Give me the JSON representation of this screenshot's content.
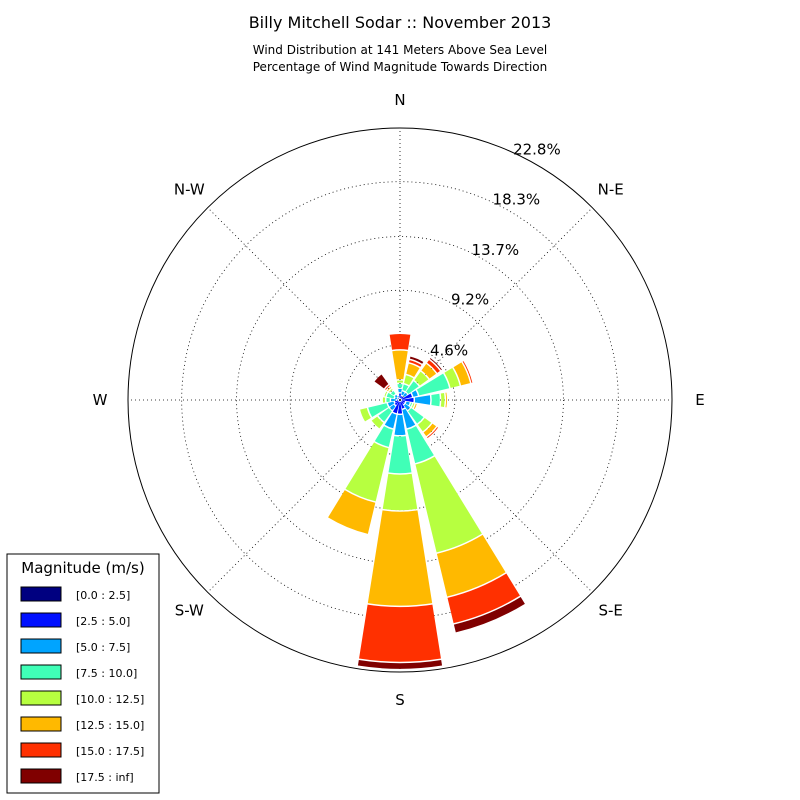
{
  "chart_data": {
    "type": "windrose",
    "title": "Billy Mitchell Sodar :: November 2013",
    "subtitle_lines": [
      "Wind Distribution at 141 Meters Above Sea Level",
      "Percentage of Wind Magnitude Towards Direction"
    ],
    "directions": [
      "N",
      "NNE",
      "NE",
      "ENE",
      "E",
      "ESE",
      "SE",
      "SSE",
      "S",
      "SSW",
      "SW",
      "WSW",
      "W",
      "WNW",
      "NW",
      "NNW"
    ],
    "direction_labels": {
      "N": "N",
      "NE": "N-E",
      "E": "E",
      "SE": "S-E",
      "S": "S",
      "SW": "S-W",
      "W": "W",
      "NW": "N-W"
    },
    "radial_ticks": [
      "4.6%",
      "9.2%",
      "13.7%",
      "18.3%",
      "22.8%"
    ],
    "radial_tick_values": [
      4.6,
      9.2,
      13.7,
      18.3,
      22.8
    ],
    "radial_max": 22.8,
    "legend_title": "Magnitude (m/s)",
    "bins": [
      {
        "label": "[0.0 : 2.5]",
        "color": "#000080"
      },
      {
        "label": "[2.5 : 5.0]",
        "color": "#0010ff"
      },
      {
        "label": "[5.0 : 7.5]",
        "color": "#00a4ff"
      },
      {
        "label": "[7.5 : 10.0]",
        "color": "#40ffb7"
      },
      {
        "label": "[10.0 : 12.5]",
        "color": "#b7ff40"
      },
      {
        "label": "[12.5 : 15.0]",
        "color": "#ffb900"
      },
      {
        "label": "[15.0 : 17.5]",
        "color": "#ff3000"
      },
      {
        "label": "[17.5 : inf]",
        "color": "#800000"
      }
    ],
    "cumulative_percent": [
      [
        0.1,
        0.6,
        1.0,
        1.4,
        1.7,
        4.2,
        5.6,
        5.7
      ],
      [
        0.1,
        0.4,
        0.8,
        1.4,
        2.2,
        3.2,
        3.5,
        3.8
      ],
      [
        0.1,
        0.4,
        0.8,
        2.0,
        3.0,
        3.8,
        4.2,
        4.4
      ],
      [
        0.1,
        1.1,
        1.6,
        4.3,
        5.2,
        6.1,
        6.3,
        6.4
      ],
      [
        0.1,
        1.2,
        2.6,
        3.4,
        3.8,
        4.0,
        4.1,
        4.1
      ],
      [
        0.1,
        0.5,
        0.9,
        1.1,
        1.3,
        1.5,
        1.6,
        1.6
      ],
      [
        0.1,
        0.5,
        1.1,
        2.5,
        3.3,
        3.8,
        4.0,
        4.1
      ],
      [
        0.1,
        0.8,
        2.5,
        5.5,
        13.2,
        17.0,
        19.3,
        20.1
      ],
      [
        0.1,
        1.2,
        3.0,
        6.2,
        9.3,
        17.3,
        22.0,
        22.6
      ],
      [
        0.1,
        1.2,
        2.5,
        4.1,
        8.8,
        11.6,
        11.7,
        11.7
      ],
      [
        0.1,
        0.6,
        1.1,
        2.3,
        3.0,
        3.1,
        3.2,
        3.2
      ],
      [
        0.1,
        0.5,
        1.1,
        2.8,
        3.5,
        3.6,
        3.7,
        3.7
      ],
      [
        0.1,
        0.3,
        0.8,
        1.2,
        1.5,
        1.6,
        1.7,
        1.7
      ],
      [
        0.1,
        0.2,
        0.5,
        1.2,
        1.4,
        1.5,
        1.6,
        1.6
      ],
      [
        0.1,
        0.3,
        0.6,
        1.0,
        1.2,
        1.4,
        1.6,
        2.7
      ],
      [
        0.1,
        0.2,
        0.4,
        0.5,
        0.6,
        0.7,
        0.8,
        0.9
      ]
    ],
    "grid": true,
    "legend_position": "bottom-left"
  }
}
